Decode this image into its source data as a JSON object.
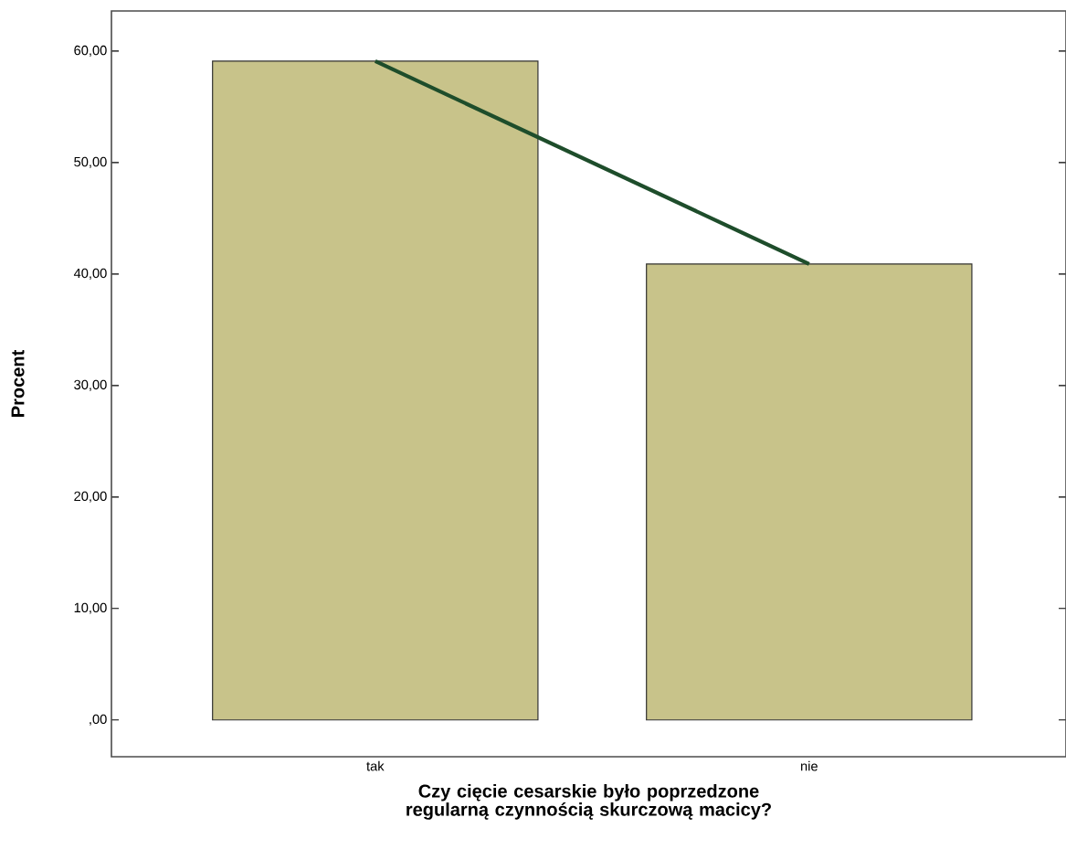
{
  "chart_data": {
    "type": "bar",
    "xlabel": "Czy cięcie cesarskie było poprzedzone regularną czynnością skurczową macicy?",
    "ylabel": "Procent",
    "categories": [
      "tak",
      "nie"
    ],
    "series": [
      {
        "color": "#c8c38a",
        "values": [
          59.1,
          40.9
        ]
      },
      {
        "type": "line",
        "color": "#1e4d2b",
        "values": [
          59.1,
          40.9
        ]
      }
    ],
    "ylim": [
      -3.3,
      63.6
    ],
    "yticks": [
      {
        "value": 0,
        "label": ",00"
      },
      {
        "value": 10,
        "label": "10,00"
      },
      {
        "value": 20,
        "label": "20,00"
      },
      {
        "value": 30,
        "label": "30,00"
      },
      {
        "value": 40,
        "label": "40,00"
      },
      {
        "value": 50,
        "label": "50,00"
      },
      {
        "value": 60,
        "label": "60,00"
      }
    ],
    "grid": false
  }
}
